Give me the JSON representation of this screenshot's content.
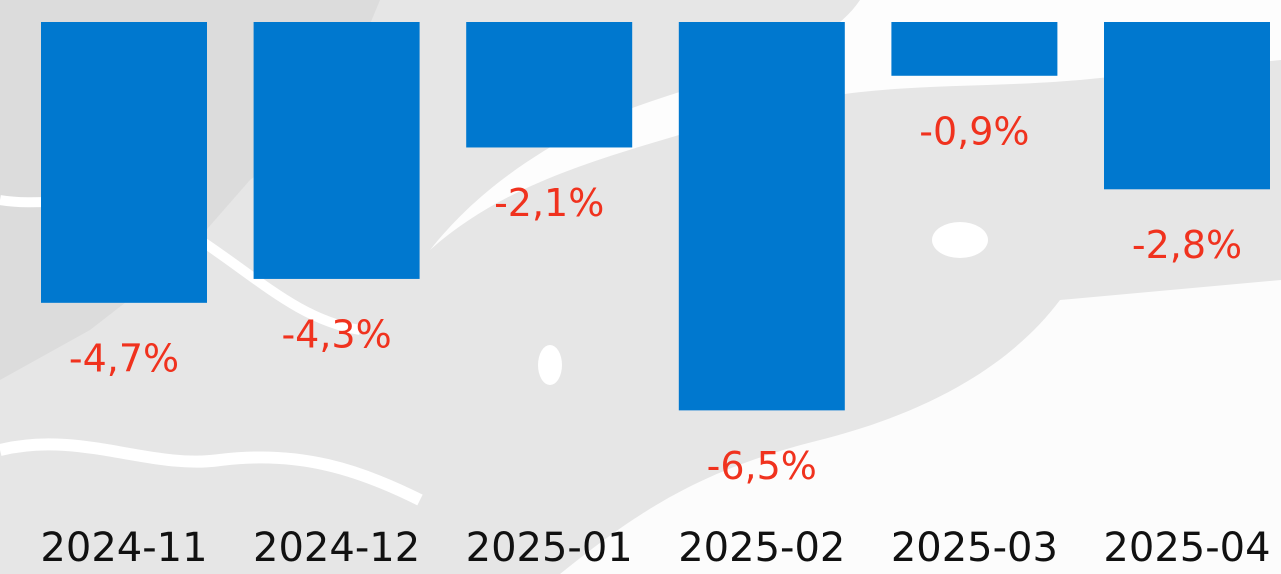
{
  "chart_data": {
    "type": "bar",
    "categories": [
      "2024-11",
      "2024-12",
      "2025-01",
      "2025-02",
      "2025-03",
      "2025-04"
    ],
    "values": [
      -4.7,
      -4.3,
      -2.1,
      -6.5,
      -0.9,
      -2.8
    ],
    "value_labels": [
      "-4,7%",
      "-4,3%",
      "-2,1%",
      "-6,5%",
      "-0,9%",
      "-2,8%"
    ],
    "color": "#0078cf",
    "label_color": "#f0321e",
    "ylim": [
      -8,
      0
    ]
  }
}
